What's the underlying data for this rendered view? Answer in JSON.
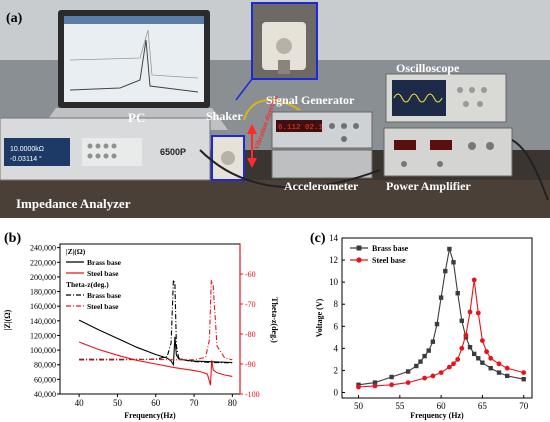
{
  "photo": {
    "panel_label": "(a)",
    "labels": {
      "pc": "PC",
      "shaker": "Shaker",
      "signal_generator": "Signal Generator",
      "oscilloscope": "Oscilloscope",
      "accelerometer": "Accelerometer",
      "power_amplifier": "Power Amplifier",
      "impedance_analyzer": "Impedance Analyzer",
      "vibration_direction": "Vibration direction"
    },
    "instrument_text": {
      "analyzer_line1": "10.0000kΩ",
      "analyzer_line2": "-0.03114 °",
      "analyzer_model": "6500P",
      "generator_display": "6.112 02.1"
    }
  },
  "chart_data": [
    {
      "panel_label": "(b)",
      "type": "line",
      "xlabel": "Frequency(Hz)",
      "ylabel": "|Z|(Ω)",
      "y2label": "Theta-z(deg.)",
      "xlim": [
        35,
        82
      ],
      "ylim": [
        40000,
        245000
      ],
      "y2lim": [
        -100,
        -50
      ],
      "x_ticks": [
        40,
        50,
        60,
        70,
        80
      ],
      "y_ticks": [
        "40,000",
        "60,000",
        "80,000",
        "100,000",
        "120,000",
        "140,000",
        "160,000",
        "180,000",
        "200,000",
        "220,000",
        "240,000"
      ],
      "y2_ticks": [
        -60,
        -70,
        -80,
        -90,
        -100
      ],
      "legend_group1_title": "|Z|(Ω)",
      "legend_group2_title": "Theta-z(deg.)",
      "colors": {
        "brass": "#000000",
        "steel": "#e8141b"
      },
      "series": [
        {
          "name": "Brass base",
          "axis": "left",
          "style": "solid",
          "x": [
            40,
            45,
            50,
            55,
            60,
            63,
            64,
            64.6,
            65,
            65.4,
            66,
            68,
            70,
            75,
            80
          ],
          "y": [
            141000,
            128000,
            116000,
            104000,
            94000,
            89000,
            85000,
            80000,
            118000,
            93000,
            88000,
            86000,
            85000,
            84000,
            83000
          ]
        },
        {
          "name": "Steel base",
          "axis": "left",
          "style": "solid",
          "x": [
            40,
            45,
            50,
            55,
            60,
            65,
            70,
            72,
            73.5,
            74.3,
            74.6,
            75,
            76,
            78,
            80
          ],
          "y": [
            111000,
            101000,
            93000,
            86000,
            81000,
            76000,
            72000,
            70000,
            67000,
            52000,
            86000,
            73000,
            69000,
            66000,
            64000
          ]
        },
        {
          "name": "Brass base",
          "axis": "right",
          "style": "dashdot",
          "x": [
            40,
            50,
            60,
            63,
            64,
            64.6,
            65,
            65.4,
            66,
            68,
            70,
            75,
            80
          ],
          "y": [
            -88.6,
            -88.6,
            -88.4,
            -87.5,
            -83,
            -62,
            -63,
            -84,
            -88,
            -88.8,
            -89.2,
            -89.5,
            -89.6
          ]
        },
        {
          "name": "Steel base",
          "axis": "right",
          "style": "dashdot",
          "x": [
            40,
            50,
            60,
            65,
            70,
            73,
            74,
            74.5,
            75,
            76,
            78,
            80
          ],
          "y": [
            -88.4,
            -88.4,
            -88.5,
            -88.6,
            -88.6,
            -87.8,
            -82,
            -62,
            -64,
            -84,
            -88,
            -88.6
          ]
        }
      ]
    },
    {
      "panel_label": "(c)",
      "type": "line",
      "xlabel": "Frequency (Hz)",
      "ylabel": "Voltage (V)",
      "xlim": [
        48,
        71
      ],
      "ylim": [
        -0.5,
        14
      ],
      "x_ticks": [
        50,
        55,
        60,
        65,
        70
      ],
      "y_ticks": [
        0,
        2,
        4,
        6,
        8,
        10,
        12,
        14
      ],
      "colors": {
        "brass": "#3c3c3c",
        "steel": "#e8141b"
      },
      "series": [
        {
          "name": "Brass base",
          "x": [
            50,
            52,
            54,
            56,
            57,
            57.5,
            58,
            58.5,
            59,
            59.5,
            60,
            60.5,
            61,
            61.5,
            62,
            62.5,
            63,
            63.5,
            64,
            64.5,
            65,
            66,
            67,
            68,
            70
          ],
          "y": [
            0.7,
            0.9,
            1.4,
            1.9,
            2.4,
            2.8,
            3.3,
            3.8,
            4.6,
            6.2,
            8.6,
            11.0,
            13.0,
            11.8,
            9.0,
            6.5,
            5.0,
            4.1,
            3.5,
            3.1,
            2.7,
            2.2,
            1.8,
            1.5,
            1.2
          ]
        },
        {
          "name": "Steel base",
          "x": [
            50,
            52,
            54,
            56,
            58,
            59,
            60,
            61,
            61.5,
            62,
            62.5,
            63,
            63.5,
            64,
            64.5,
            65,
            65.5,
            66,
            67,
            68,
            70
          ],
          "y": [
            0.5,
            0.6,
            0.7,
            0.9,
            1.3,
            1.5,
            1.8,
            2.3,
            2.6,
            3.0,
            4.0,
            5.2,
            7.3,
            10.2,
            7.2,
            4.7,
            3.7,
            3.1,
            2.6,
            2.2,
            1.8
          ]
        }
      ]
    }
  ]
}
